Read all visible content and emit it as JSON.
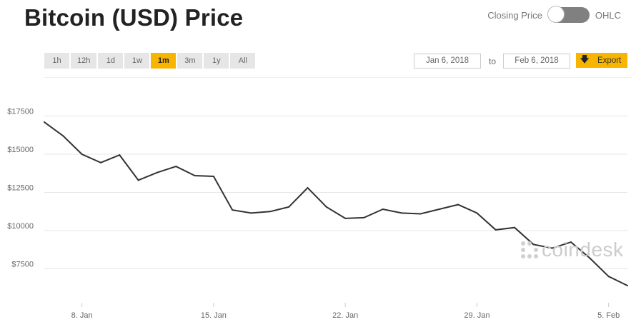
{
  "header": {
    "title": "Bitcoin (USD) Price",
    "toggle_left_label": "Closing Price",
    "toggle_right_label": "OHLC"
  },
  "ranges": [
    "1h",
    "12h",
    "1d",
    "1w",
    "1m",
    "3m",
    "1y",
    "All"
  ],
  "active_range": "1m",
  "date_range": {
    "from": "Jan 6, 2018",
    "to_label": "to",
    "to": "Feb 6, 2018"
  },
  "export_label": "Export",
  "watermark": "coindesk",
  "colors": {
    "accent": "#f7b500",
    "line": "#333333",
    "grid": "#e6e6e6"
  },
  "chart_data": {
    "type": "line",
    "title": "",
    "xlabel": "",
    "ylabel": "",
    "grid": true,
    "y_ticks": [
      7500,
      10000,
      12500,
      15000,
      17500
    ],
    "y_tick_labels": [
      "$7500",
      "$10000",
      "$12500",
      "$15000",
      "$17500"
    ],
    "x_ticks": [
      {
        "date": "2018-01-08",
        "label": "8. Jan"
      },
      {
        "date": "2018-01-15",
        "label": "15. Jan"
      },
      {
        "date": "2018-01-22",
        "label": "22. Jan"
      },
      {
        "date": "2018-01-29",
        "label": "29. Jan"
      },
      {
        "date": "2018-02-05",
        "label": "5. Feb"
      }
    ],
    "xlim": [
      "2018-01-06",
      "2018-02-06"
    ],
    "series": [
      {
        "x": [
          "2018-01-06",
          "2018-01-07",
          "2018-01-08",
          "2018-01-09",
          "2018-01-10",
          "2018-01-11",
          "2018-01-12",
          "2018-01-13",
          "2018-01-14",
          "2018-01-15",
          "2018-01-16",
          "2018-01-17",
          "2018-01-18",
          "2018-01-19",
          "2018-01-20",
          "2018-01-21",
          "2018-01-22",
          "2018-01-23",
          "2018-01-24",
          "2018-01-25",
          "2018-01-26",
          "2018-01-27",
          "2018-01-28",
          "2018-01-29",
          "2018-01-30",
          "2018-01-31",
          "2018-02-01",
          "2018-02-02",
          "2018-02-03",
          "2018-02-04",
          "2018-02-05",
          "2018-02-06"
        ],
        "values": [
          17100,
          16200,
          15000,
          14450,
          14950,
          13300,
          13800,
          14200,
          13600,
          13550,
          11350,
          11150,
          11250,
          11550,
          12800,
          11550,
          10800,
          10850,
          11400,
          11150,
          11100,
          11400,
          11700,
          11150,
          10050,
          10200,
          9100,
          8850,
          9250,
          8200,
          7000,
          6400
        ]
      }
    ]
  }
}
